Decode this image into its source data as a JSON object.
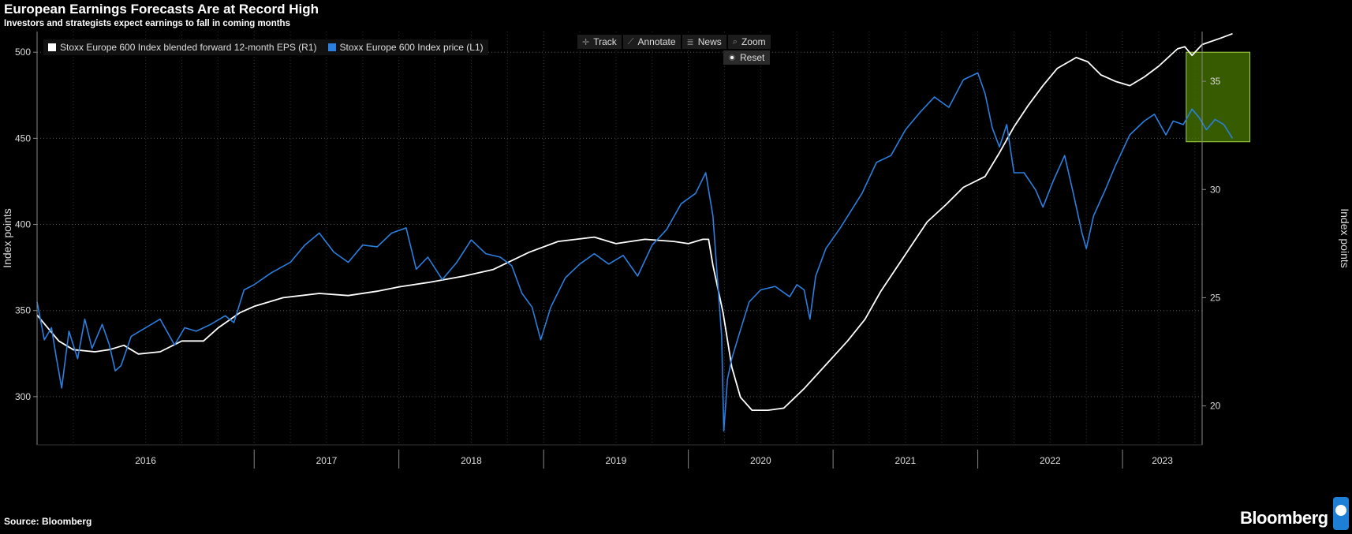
{
  "header": {
    "title": "European Earnings Forecasts Are at Record High",
    "subtitle": "Investors and strategists expect earnings to fall in coming months"
  },
  "toolbar": {
    "track": "Track",
    "annotate": "Annotate",
    "news": "News",
    "zoom": "Zoom",
    "reset": "Reset"
  },
  "footer": {
    "source": "Source: Bloomberg",
    "brand": "Bloomberg"
  },
  "chart_data": {
    "type": "line",
    "legend_placement": "top-left",
    "grid": true,
    "x_labels": [
      "2016",
      "2017",
      "2018",
      "2019",
      "2020",
      "2021",
      "2022",
      "2023"
    ],
    "x_range": [
      2015.5,
      2023.55
    ],
    "left_axis": {
      "label": "Index points",
      "ticks": [
        300,
        350,
        400,
        450,
        500
      ],
      "range": [
        272,
        512
      ]
    },
    "right_axis": {
      "label": "Index points",
      "ticks": [
        20,
        25,
        30,
        35
      ],
      "range": [
        18.2,
        37.3
      ]
    },
    "series": [
      {
        "name": "Stoxx Europe 600 Index blended forward 12-month EPS (R1)",
        "axis": "right",
        "color": "#ffffff",
        "points": [
          [
            2015.5,
            24.2
          ],
          [
            2015.65,
            23.0
          ],
          [
            2015.75,
            22.6
          ],
          [
            2015.9,
            22.5
          ],
          [
            2016.0,
            22.6
          ],
          [
            2016.1,
            22.8
          ],
          [
            2016.2,
            22.4
          ],
          [
            2016.35,
            22.5
          ],
          [
            2016.5,
            23.0
          ],
          [
            2016.65,
            23.0
          ],
          [
            2016.75,
            23.6
          ],
          [
            2016.9,
            24.3
          ],
          [
            2017.0,
            24.6
          ],
          [
            2017.2,
            25.0
          ],
          [
            2017.45,
            25.2
          ],
          [
            2017.65,
            25.1
          ],
          [
            2017.85,
            25.3
          ],
          [
            2018.0,
            25.5
          ],
          [
            2018.2,
            25.7
          ],
          [
            2018.45,
            26.0
          ],
          [
            2018.65,
            26.3
          ],
          [
            2018.9,
            27.1
          ],
          [
            2019.1,
            27.6
          ],
          [
            2019.35,
            27.8
          ],
          [
            2019.5,
            27.5
          ],
          [
            2019.7,
            27.7
          ],
          [
            2019.9,
            27.6
          ],
          [
            2020.0,
            27.5
          ],
          [
            2020.1,
            27.7
          ],
          [
            2020.14,
            27.7
          ],
          [
            2020.17,
            26.5
          ],
          [
            2020.24,
            24.3
          ],
          [
            2020.3,
            21.8
          ],
          [
            2020.36,
            20.4
          ],
          [
            2020.44,
            19.8
          ],
          [
            2020.55,
            19.8
          ],
          [
            2020.66,
            19.9
          ],
          [
            2020.8,
            20.8
          ],
          [
            2020.95,
            21.9
          ],
          [
            2021.1,
            23.0
          ],
          [
            2021.22,
            24.0
          ],
          [
            2021.33,
            25.3
          ],
          [
            2021.45,
            26.5
          ],
          [
            2021.55,
            27.5
          ],
          [
            2021.65,
            28.5
          ],
          [
            2021.78,
            29.3
          ],
          [
            2021.9,
            30.1
          ],
          [
            2022.05,
            30.6
          ],
          [
            2022.15,
            31.7
          ],
          [
            2022.25,
            32.9
          ],
          [
            2022.35,
            33.9
          ],
          [
            2022.45,
            34.8
          ],
          [
            2022.55,
            35.6
          ],
          [
            2022.68,
            36.1
          ],
          [
            2022.76,
            35.9
          ],
          [
            2022.85,
            35.3
          ],
          [
            2022.95,
            35.0
          ],
          [
            2023.05,
            34.8
          ],
          [
            2023.15,
            35.2
          ],
          [
            2023.25,
            35.7
          ],
          [
            2023.38,
            36.5
          ],
          [
            2023.43,
            36.6
          ],
          [
            2023.48,
            36.2
          ],
          [
            2023.55,
            36.7
          ],
          [
            2023.68,
            37.0
          ],
          [
            2023.76,
            37.2
          ]
        ]
      },
      {
        "name": "Stoxx Europe 600 Index price (L1)",
        "axis": "left",
        "color": "#2b7fe0",
        "points": [
          [
            2015.5,
            355
          ],
          [
            2015.55,
            333
          ],
          [
            2015.6,
            340
          ],
          [
            2015.63,
            324
          ],
          [
            2015.67,
            305
          ],
          [
            2015.72,
            338
          ],
          [
            2015.78,
            322
          ],
          [
            2015.83,
            345
          ],
          [
            2015.88,
            328
          ],
          [
            2015.95,
            342
          ],
          [
            2016.0,
            330
          ],
          [
            2016.04,
            315
          ],
          [
            2016.08,
            318
          ],
          [
            2016.15,
            335
          ],
          [
            2016.25,
            340
          ],
          [
            2016.35,
            345
          ],
          [
            2016.45,
            330
          ],
          [
            2016.52,
            340
          ],
          [
            2016.6,
            338
          ],
          [
            2016.7,
            342
          ],
          [
            2016.8,
            347
          ],
          [
            2016.86,
            343
          ],
          [
            2016.93,
            362
          ],
          [
            2017.0,
            365
          ],
          [
            2017.12,
            372
          ],
          [
            2017.25,
            378
          ],
          [
            2017.35,
            388
          ],
          [
            2017.45,
            395
          ],
          [
            2017.55,
            384
          ],
          [
            2017.65,
            378
          ],
          [
            2017.75,
            388
          ],
          [
            2017.85,
            387
          ],
          [
            2017.95,
            395
          ],
          [
            2018.05,
            398
          ],
          [
            2018.12,
            374
          ],
          [
            2018.2,
            381
          ],
          [
            2018.3,
            368
          ],
          [
            2018.4,
            378
          ],
          [
            2018.5,
            391
          ],
          [
            2018.6,
            383
          ],
          [
            2018.7,
            381
          ],
          [
            2018.78,
            376
          ],
          [
            2018.85,
            360
          ],
          [
            2018.92,
            352
          ],
          [
            2018.98,
            333
          ],
          [
            2019.05,
            352
          ],
          [
            2019.15,
            369
          ],
          [
            2019.25,
            377
          ],
          [
            2019.35,
            383
          ],
          [
            2019.45,
            377
          ],
          [
            2019.55,
            382
          ],
          [
            2019.65,
            370
          ],
          [
            2019.75,
            388
          ],
          [
            2019.85,
            397
          ],
          [
            2019.95,
            412
          ],
          [
            2020.05,
            418
          ],
          [
            2020.12,
            430
          ],
          [
            2020.14,
            420
          ],
          [
            2020.17,
            405
          ],
          [
            2020.2,
            370
          ],
          [
            2020.23,
            335
          ],
          [
            2020.245,
            280
          ],
          [
            2020.27,
            310
          ],
          [
            2020.3,
            322
          ],
          [
            2020.35,
            336
          ],
          [
            2020.42,
            355
          ],
          [
            2020.5,
            362
          ],
          [
            2020.6,
            364
          ],
          [
            2020.7,
            358
          ],
          [
            2020.75,
            365
          ],
          [
            2020.8,
            362
          ],
          [
            2020.84,
            345
          ],
          [
            2020.88,
            370
          ],
          [
            2020.95,
            386
          ],
          [
            2021.05,
            398
          ],
          [
            2021.2,
            418
          ],
          [
            2021.3,
            436
          ],
          [
            2021.4,
            440
          ],
          [
            2021.5,
            455
          ],
          [
            2021.6,
            465
          ],
          [
            2021.7,
            474
          ],
          [
            2021.8,
            468
          ],
          [
            2021.9,
            484
          ],
          [
            2022.0,
            488
          ],
          [
            2022.05,
            476
          ],
          [
            2022.1,
            456
          ],
          [
            2022.15,
            445
          ],
          [
            2022.2,
            458
          ],
          [
            2022.25,
            430
          ],
          [
            2022.32,
            430
          ],
          [
            2022.4,
            420
          ],
          [
            2022.45,
            410
          ],
          [
            2022.52,
            425
          ],
          [
            2022.6,
            440
          ],
          [
            2022.66,
            418
          ],
          [
            2022.72,
            395
          ],
          [
            2022.75,
            386
          ],
          [
            2022.8,
            405
          ],
          [
            2022.88,
            420
          ],
          [
            2022.95,
            434
          ],
          [
            2023.05,
            452
          ],
          [
            2023.15,
            460
          ],
          [
            2023.22,
            464
          ],
          [
            2023.3,
            452
          ],
          [
            2023.35,
            460
          ],
          [
            2023.42,
            458
          ],
          [
            2023.48,
            467
          ],
          [
            2023.53,
            462
          ],
          [
            2023.58,
            455
          ],
          [
            2023.64,
            461
          ],
          [
            2023.7,
            458
          ],
          [
            2023.76,
            450
          ]
        ]
      }
    ],
    "highlight": {
      "x_range": [
        2023.44,
        2023.88
      ],
      "y_range": [
        448,
        500
      ],
      "color": "#4a7a00"
    }
  }
}
